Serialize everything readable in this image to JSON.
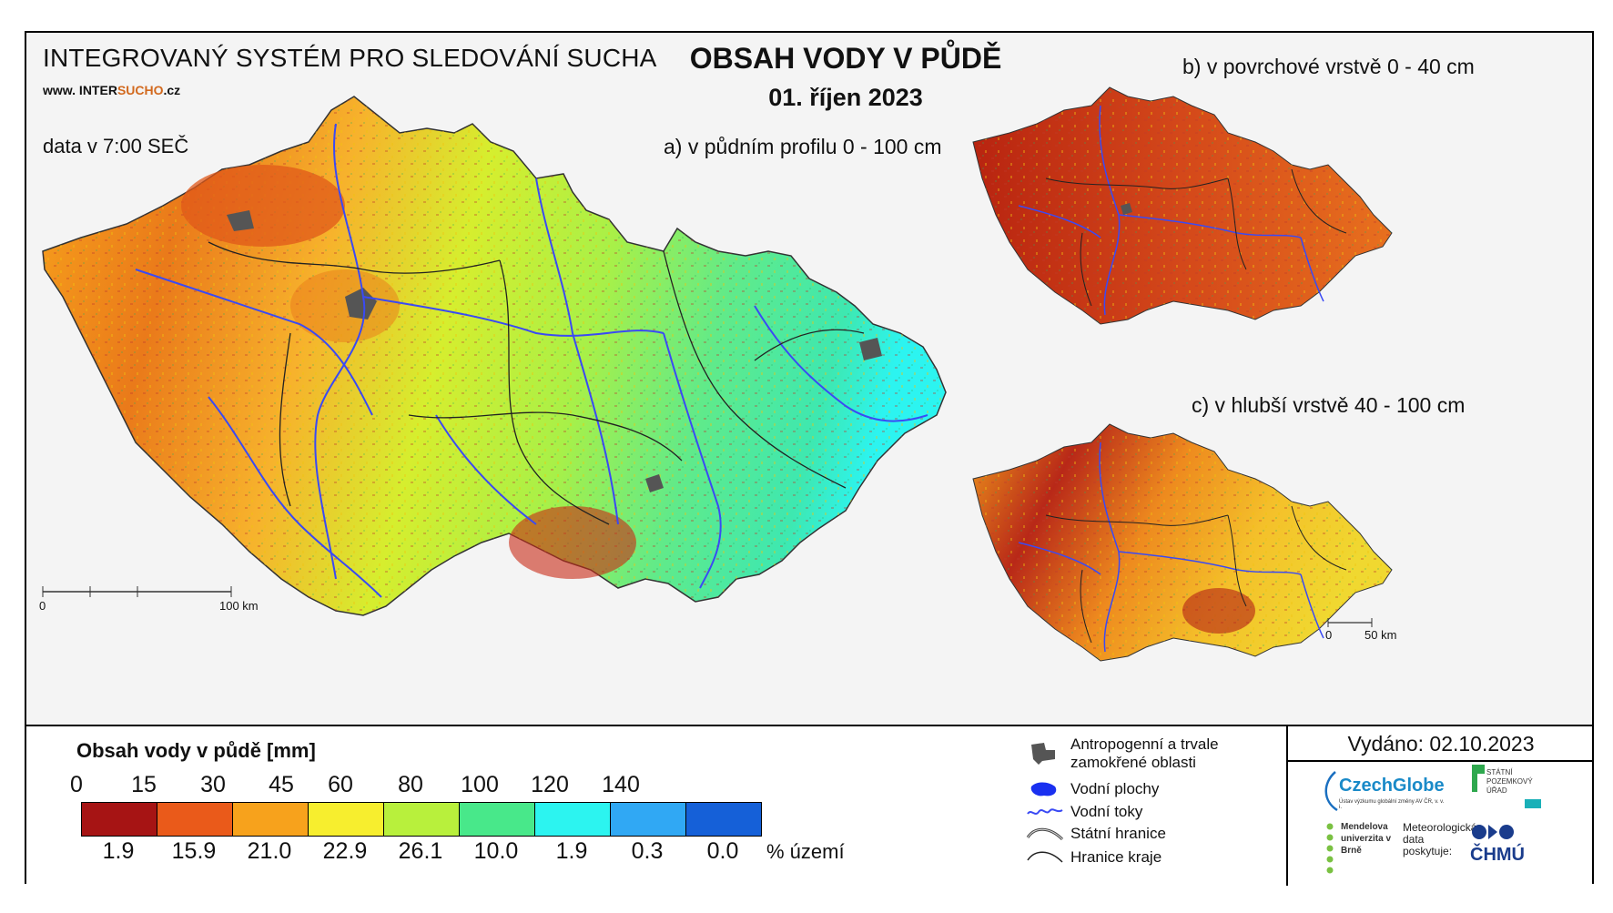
{
  "header": {
    "system_name": "INTEGROVANÝ SYSTÉM PRO SLEDOVÁNÍ SUCHA",
    "url_prefix": "www. INTER",
    "url_brand": "SUCHO",
    "url_suffix": ".cz",
    "data_time": "data v 7:00 SEČ"
  },
  "title": {
    "main": "OBSAH VODY V PŮDĚ",
    "date": "01. říjen 2023"
  },
  "maps": {
    "a_label": "a) v půdním profilu 0 - 100 cm",
    "b_label": "b) v povrchové vrstvě 0 - 40 cm",
    "c_label": "c) v hlubší vrstvě 40 - 100 cm",
    "scale_main": {
      "start": "0",
      "end": "100 km"
    },
    "scale_small": {
      "start": "0",
      "end": "50 km"
    }
  },
  "legend": {
    "title": "Obsah vody v půdě  [mm]",
    "ticks": [
      "0",
      "15",
      "30",
      "45",
      "60",
      "80",
      "100",
      "120",
      "140"
    ],
    "colors": [
      "#a61414",
      "#ea5a1a",
      "#f7a21c",
      "#f7ee2e",
      "#b8f03c",
      "#48e88a",
      "#2cf4f0",
      "#30a8f4",
      "#1560d8"
    ],
    "percent": [
      "1.9",
      "15.9",
      "21.0",
      "22.9",
      "26.1",
      "10.0",
      "1.9",
      "0.3",
      "0.0"
    ],
    "percent_label": "% území"
  },
  "symbols": {
    "urban": "Antropogenní a trvale zamokřené oblasti",
    "water_bodies": "Vodní plochy",
    "rivers": "Vodní toky",
    "state_border": "Státní hranice",
    "region_border": "Hranice kraje"
  },
  "issue": {
    "issued": "Vydáno: 02.10.2023",
    "czechglobe": "CzechGlobe",
    "czechglobe_sub": "Ústav výzkumu globální změny AV ČR, v. v. i.",
    "spu": "STÁTNÍ POZEMKOVÝ ÚŘAD",
    "mendelu": "Mendelova univerzita v Brně",
    "meteo": "Meteorologická data poskytuje:",
    "chmu": "ČHMÚ"
  }
}
